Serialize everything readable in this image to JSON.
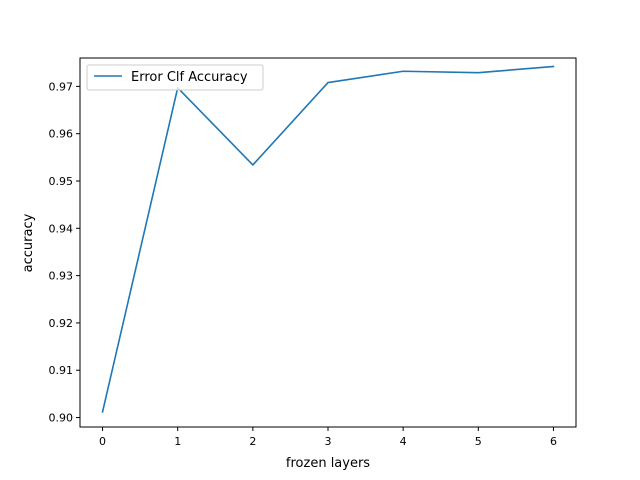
{
  "chart_data": {
    "type": "line",
    "title": "",
    "xlabel": "frozen layers",
    "ylabel": "accuracy",
    "xlim": [
      -0.3,
      6.3
    ],
    "ylim": [
      0.898,
      0.976
    ],
    "xticks": [
      0,
      1,
      2,
      3,
      4,
      5,
      6
    ],
    "yticks": [
      0.9,
      0.91,
      0.92,
      0.93,
      0.94,
      0.95,
      0.96,
      0.97
    ],
    "ytick_labels": [
      "0.90",
      "0.91",
      "0.92",
      "0.93",
      "0.94",
      "0.95",
      "0.96",
      "0.97"
    ],
    "grid": false,
    "legend_position": "top-left",
    "series": [
      {
        "name": "Error Clf Accuracy",
        "color": "#1f77b4",
        "x": [
          0,
          1,
          2,
          3,
          4,
          5,
          6
        ],
        "values": [
          0.9012,
          0.9697,
          0.9534,
          0.9708,
          0.9732,
          0.9729,
          0.9742
        ]
      }
    ]
  }
}
